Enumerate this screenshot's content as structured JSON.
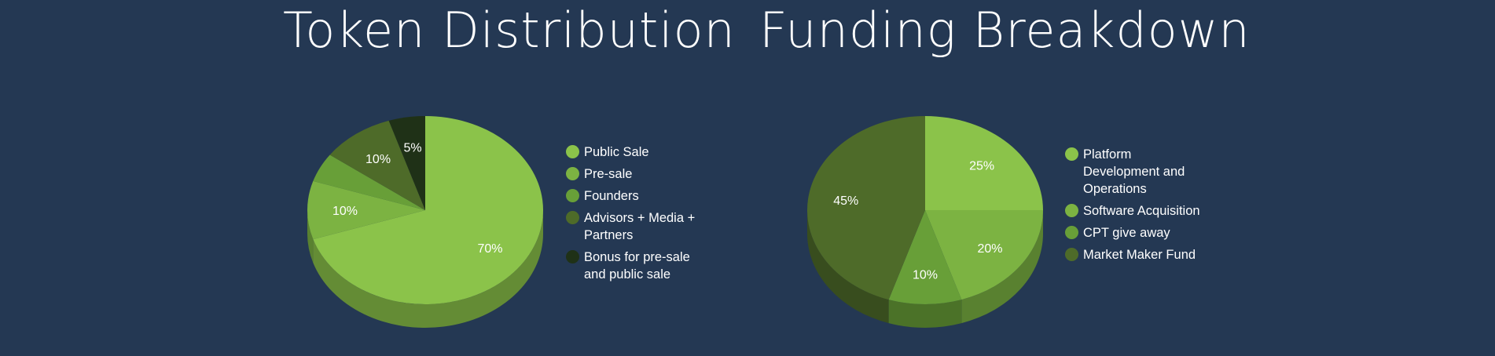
{
  "page": {
    "background": "#243853"
  },
  "chart_data": [
    {
      "type": "pie",
      "style": "3d",
      "title": "Token Distribution",
      "categories": [
        "Public Sale",
        "Pre-sale",
        "Founders",
        "Advisors + Media + Partners",
        "Bonus for pre-sale and public sale"
      ],
      "values": [
        70,
        10,
        5,
        10,
        5
      ],
      "data_labels": [
        "70%",
        "10%",
        "",
        "10%",
        "5%"
      ],
      "colors": [
        "#8bc34a",
        "#7cb342",
        "#689f38",
        "#4e6b29",
        "#1f3117"
      ],
      "legend_position": "right"
    },
    {
      "type": "pie",
      "style": "3d",
      "title": "Funding Breakdown",
      "categories": [
        "Platform Development and Operations",
        "Software Acquisition",
        "CPT give away",
        "Market Maker Fund"
      ],
      "values": [
        25,
        20,
        10,
        45
      ],
      "data_labels": [
        "25%",
        "20%",
        "10%",
        "45%"
      ],
      "colors": [
        "#8bc34a",
        "#7cb342",
        "#689f38",
        "#4e6b29"
      ],
      "legend_position": "right"
    }
  ]
}
